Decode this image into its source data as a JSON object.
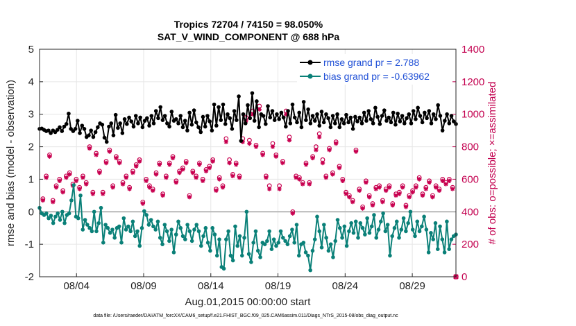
{
  "chart_data": {
    "type": "line",
    "title": "Tropics 72704 / 74150 = 98.050%",
    "subtitle": "SAT_V_WIND_COMPONENT @ 688 hPa",
    "xlabel": "Aug.01,2015 00:00:00 start",
    "ylabel": "rmse and bias (model - observation)",
    "ylabel_right": "# of obs: o=possible; ×=assimilated",
    "ylim": [
      -2,
      5
    ],
    "ylim_right": [
      0,
      1400
    ],
    "xlim": [
      1.25,
      32.25
    ],
    "yticks": [
      "-2",
      "-1",
      "0",
      "1",
      "2",
      "3",
      "4",
      "5"
    ],
    "yticks_right": [
      "0",
      "200",
      "400",
      "600",
      "800",
      "1000",
      "1200",
      "1400"
    ],
    "xtick_values": [
      4,
      9,
      14,
      19,
      24,
      29
    ],
    "xtick_labels": [
      "08/04",
      "08/09",
      "08/14",
      "08/19",
      "08/24",
      "08/29"
    ],
    "legend": [
      "rmse grand pr = 2.788",
      "bias grand pr = -0.63962"
    ],
    "footnote": "data file: /Users/raeder/DAI/ATM_forcXX/CAM6_setup/f.e21.FHIST_BGC.f09_025.CAM6assim.011/Diags_NTrS_2015-08/obs_diag_output.nc",
    "colors": {
      "rmse": "#000000",
      "bias": "#0a8078",
      "obs": "#c8004f",
      "zero": "#b8b8b8",
      "legend_text": "#1f4fd6"
    },
    "series": [
      {
        "name": "rmse",
        "values": [
          2.55,
          2.56,
          2.52,
          2.48,
          2.5,
          2.42,
          2.5,
          2.45,
          2.52,
          2.6,
          2.48,
          2.62,
          2.7,
          3.02,
          2.55,
          2.48,
          2.55,
          2.8,
          2.42,
          2.65,
          2.55,
          2.3,
          2.35,
          2.5,
          2.3,
          2.45,
          2.6,
          2.72,
          2.68,
          2.28,
          2.15,
          2.62,
          2.72,
          2.35,
          2.98,
          2.58,
          2.72,
          2.42,
          2.85,
          2.7,
          2.9,
          2.78,
          2.62,
          2.95,
          2.72,
          2.9,
          2.6,
          2.8,
          2.88,
          2.65,
          2.95,
          2.72,
          3.1,
          2.88,
          3.22,
          2.82,
          2.95,
          2.72,
          2.62,
          3.08,
          2.8,
          2.85,
          2.72,
          2.95,
          2.6,
          2.8,
          2.5,
          3.05,
          2.68,
          3.12,
          2.75,
          2.6,
          2.45,
          2.92,
          2.62,
          2.95,
          2.78,
          2.5,
          3.3,
          2.65,
          3.22,
          2.82,
          3.3,
          2.7,
          3.0,
          2.88,
          2.55,
          3.1,
          2.82,
          3.55,
          2.18,
          3.0,
          2.72,
          3.28,
          2.88,
          3.65,
          2.8,
          3.4,
          2.6,
          3.0,
          2.95,
          2.7,
          3.25,
          2.9,
          3.1,
          2.82,
          3.0,
          2.85,
          3.05,
          2.9,
          2.62,
          3.1,
          2.72,
          3.3,
          2.9,
          2.75,
          3.05,
          2.6,
          3.38,
          2.82,
          3.15,
          2.72,
          2.95,
          2.8,
          3.0,
          2.65,
          3.08,
          2.75,
          3.0,
          2.88,
          2.6,
          2.95,
          2.72,
          3.0,
          2.6,
          2.85,
          2.72,
          2.98,
          2.75,
          2.9,
          2.55,
          2.92,
          2.78,
          2.9,
          2.72,
          3.05,
          2.8,
          3.1,
          2.85,
          2.72,
          3.2,
          2.92,
          2.7,
          2.95,
          3.12,
          2.8,
          2.9,
          2.75,
          3.05,
          2.68,
          3.02,
          2.78,
          2.95,
          2.72,
          2.88,
          3.0,
          2.72,
          3.1,
          2.85,
          3.2,
          2.95,
          2.75,
          3.05,
          2.88,
          3.1,
          2.72,
          3.0,
          2.85,
          3.28,
          2.95,
          2.5,
          2.8,
          3.0,
          2.72,
          2.95,
          2.78,
          2.7
        ]
      },
      {
        "name": "bias",
        "values": [
          0.12,
          -0.05,
          -0.1,
          -0.05,
          -0.2,
          -0.12,
          -0.35,
          -0.15,
          -0.05,
          -0.25,
          0.0,
          -0.35,
          -0.1,
          -0.05,
          0.35,
          0.82,
          -0.15,
          -0.2,
          0.5,
          -0.55,
          -0.25,
          -0.4,
          -0.5,
          -0.6,
          0.0,
          -0.6,
          -0.35,
          0.12,
          -0.95,
          -0.4,
          -0.5,
          -0.65,
          -0.55,
          -0.8,
          -0.5,
          -0.45,
          -0.95,
          -0.2,
          -0.55,
          -0.45,
          -0.6,
          -0.3,
          -0.75,
          -0.6,
          -1.05,
          -0.5,
          0.02,
          -0.1,
          -0.4,
          -0.25,
          -0.45,
          -0.55,
          -0.3,
          -0.8,
          -1.0,
          -0.4,
          -0.6,
          -0.9,
          -0.55,
          -1.25,
          -0.7,
          -0.3,
          -0.5,
          -0.75,
          -0.85,
          -0.4,
          -0.6,
          -0.9,
          -0.55,
          -0.4,
          -0.6,
          -1.05,
          -0.75,
          -0.5,
          -0.95,
          -1.2,
          -0.5,
          -0.7,
          -1.35,
          -0.85,
          -1.7,
          -1.75,
          -0.85,
          -0.6,
          -1.35,
          -1.5,
          -0.45,
          -1.05,
          -0.75,
          -1.35,
          -0.8,
          0.0,
          -1.3,
          -1.55,
          -0.95,
          -0.6,
          -1.2,
          -1.4,
          -0.95,
          -1.0,
          -0.9,
          -0.6,
          -1.15,
          -0.85,
          -1.05,
          -0.95,
          -0.6,
          -0.8,
          -0.9,
          -1.0,
          -0.75,
          -0.55,
          -0.95,
          -0.4,
          -1.35,
          -1.0,
          -0.95,
          -1.25,
          -1.35,
          -1.8,
          -1.2,
          -0.85,
          -0.15,
          -0.6,
          -1.1,
          -0.4,
          -0.8,
          -1.2,
          -1.0,
          -1.4,
          -0.9,
          -0.25,
          -0.5,
          -0.8,
          -0.45,
          -1.05,
          -0.6,
          -0.35,
          -0.65,
          -0.3,
          -0.8,
          -0.35,
          -0.5,
          -0.7,
          -0.2,
          -0.65,
          -0.45,
          -0.1,
          -0.8,
          -0.55,
          -0.3,
          -0.05,
          -0.6,
          -0.4,
          -1.35,
          -0.75,
          -0.5,
          -0.3,
          -0.8,
          -0.55,
          -0.2,
          -0.6,
          -0.35,
          0.0,
          -0.55,
          -0.75,
          -0.3,
          -0.6,
          -0.45,
          -0.15,
          -0.55,
          -1.25,
          -0.65,
          -0.85,
          -0.35,
          -1.15,
          -0.45,
          -0.85,
          -1.25,
          -0.3,
          -1.15,
          -0.85,
          -0.75,
          -0.7
        ]
      },
      {
        "name": "obs_possible",
        "values": [
          480,
          620,
          750,
          470,
          560,
          600,
          530,
          620,
          640,
          570,
          600,
          550,
          620,
          580,
          800,
          520,
          760,
          650,
          520,
          710,
          780,
          560,
          740,
          710,
          580,
          620,
          550,
          650,
          690,
          720,
          460,
          600,
          560,
          540,
          640,
          700,
          510,
          620,
          700,
          740,
          590,
          650,
          670,
          710,
          500,
          650,
          620,
          700,
          600,
          660,
          680,
          720,
          540,
          610,
          560,
          850,
          720,
          630,
          700,
          620,
          850,
          980,
          840,
          1020,
          810,
          1050,
          760,
          620,
          560,
          820,
          750,
          560,
          710,
          1020,
          860,
          400,
          620,
          610,
          580,
          700,
          580,
          740,
          800,
          880,
          720,
          620,
          790,
          640,
          830,
          680,
          600,
          520,
          500,
          470,
          780,
          540,
          430,
          590,
          500,
          450,
          550,
          560,
          470,
          540,
          560,
          450,
          510,
          520,
          560,
          440,
          500,
          530,
          560,
          610,
          510,
          550,
          590,
          500,
          560,
          540,
          600,
          580,
          600,
          550
        ]
      },
      {
        "name": "obs_assimilated",
        "values": [
          470,
          610,
          740,
          460,
          550,
          590,
          520,
          610,
          630,
          560,
          590,
          540,
          610,
          570,
          790,
          510,
          750,
          640,
          510,
          700,
          770,
          550,
          730,
          700,
          570,
          610,
          540,
          640,
          680,
          710,
          450,
          590,
          550,
          530,
          630,
          690,
          500,
          610,
          690,
          730,
          580,
          640,
          660,
          700,
          490,
          640,
          610,
          690,
          590,
          650,
          670,
          710,
          530,
          600,
          550,
          830,
          700,
          620,
          690,
          610,
          830,
          960,
          820,
          1000,
          800,
          1030,
          750,
          610,
          540,
          800,
          740,
          540,
          700,
          1000,
          840,
          390,
          610,
          600,
          570,
          690,
          570,
          730,
          780,
          860,
          700,
          610,
          780,
          630,
          820,
          670,
          590,
          510,
          490,
          460,
          770,
          530,
          420,
          580,
          490,
          440,
          540,
          550,
          460,
          530,
          550,
          440,
          500,
          510,
          550,
          430,
          490,
          520,
          550,
          600,
          500,
          540,
          580,
          490,
          550,
          530,
          590,
          570,
          590,
          540
        ]
      }
    ]
  }
}
